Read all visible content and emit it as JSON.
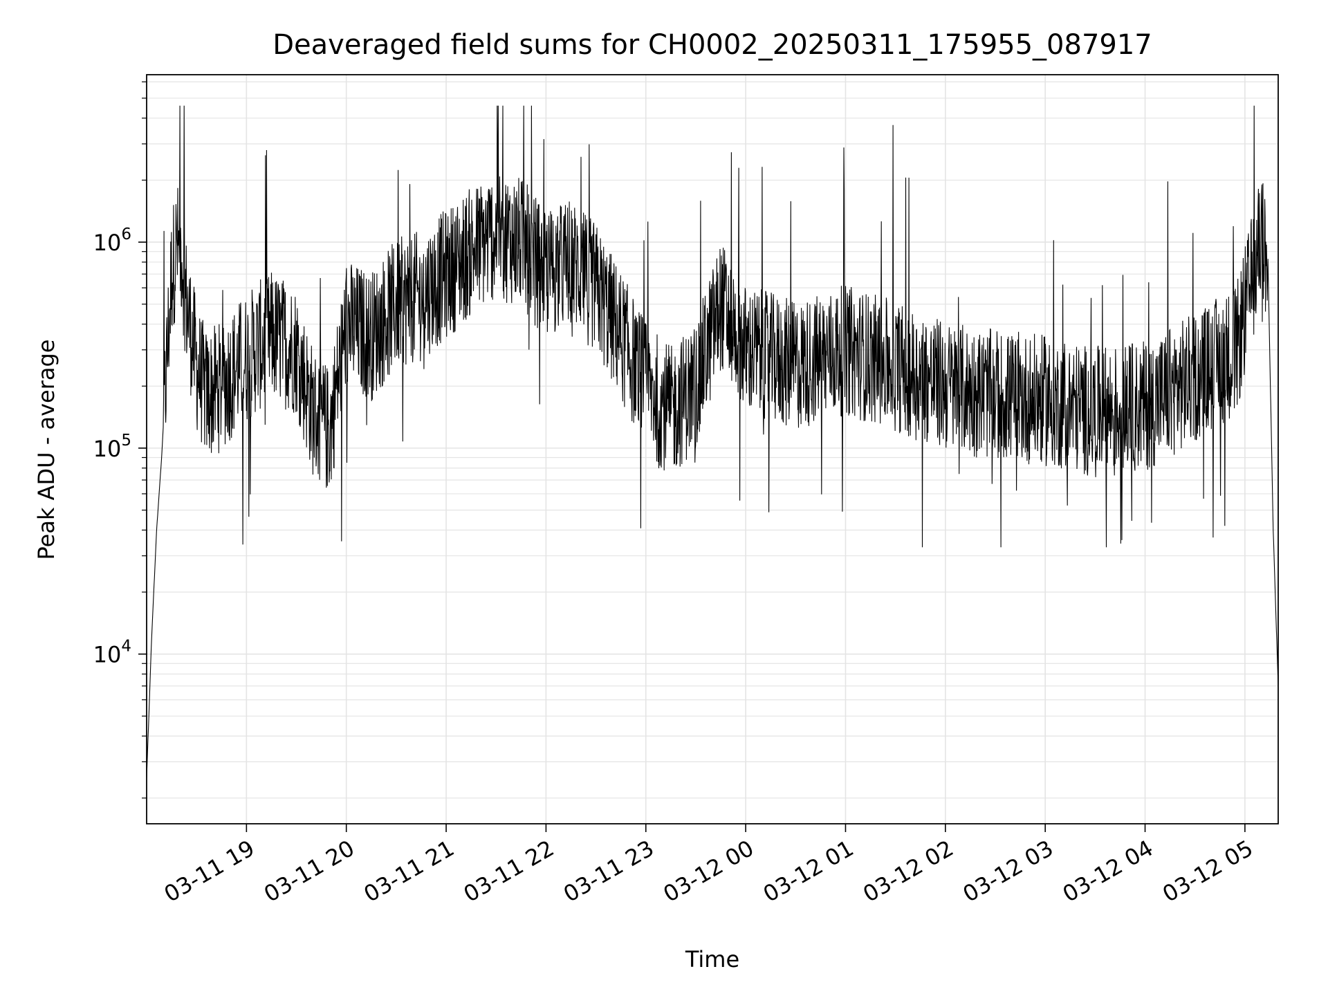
{
  "chart_data": {
    "type": "line",
    "title": "Deaveraged field sums for CH0002_20250311_175955_087917",
    "xlabel": "Time",
    "ylabel": "Peak ADU - average",
    "yscale": "log",
    "grid": true,
    "line_color": "#000000",
    "grid_color": "#e4e4e4",
    "x_range": [
      "2025-03-11 18:00",
      "2025-03-12 05:20"
    ],
    "ylim": [
      1500,
      6500000
    ],
    "x_ticks": [
      {
        "t": "2025-03-11 19:00",
        "label": "03-11 19"
      },
      {
        "t": "2025-03-11 20:00",
        "label": "03-11 20"
      },
      {
        "t": "2025-03-11 21:00",
        "label": "03-11 21"
      },
      {
        "t": "2025-03-11 22:00",
        "label": "03-11 22"
      },
      {
        "t": "2025-03-11 23:00",
        "label": "03-11 23"
      },
      {
        "t": "2025-03-12 00:00",
        "label": "03-12 00"
      },
      {
        "t": "2025-03-12 01:00",
        "label": "03-12 01"
      },
      {
        "t": "2025-03-12 02:00",
        "label": "03-12 02"
      },
      {
        "t": "2025-03-12 03:00",
        "label": "03-12 03"
      },
      {
        "t": "2025-03-12 04:00",
        "label": "03-12 04"
      },
      {
        "t": "2025-03-12 05:00",
        "label": "03-12 05"
      }
    ],
    "y_ticks": [
      {
        "value": 10000,
        "base": "10",
        "exp": "4"
      },
      {
        "value": 100000,
        "base": "10",
        "exp": "5"
      },
      {
        "value": 1000000,
        "base": "10",
        "exp": "6"
      }
    ],
    "series": [
      {
        "x": [
          "2025-03-11 18:00",
          "2025-03-11 18:03",
          "2025-03-11 18:06",
          "2025-03-11 18:09",
          "2025-03-11 18:12",
          "2025-03-11 18:15",
          "2025-03-11 18:18",
          "2025-03-11 18:21",
          "2025-03-11 18:24",
          "2025-03-11 18:30",
          "2025-03-11 18:36",
          "2025-03-11 18:45",
          "2025-03-11 18:55",
          "2025-03-11 19:05",
          "2025-03-11 19:15",
          "2025-03-11 19:30",
          "2025-03-11 19:40",
          "2025-03-11 19:50",
          "2025-03-11 20:00",
          "2025-03-11 20:15",
          "2025-03-11 20:30",
          "2025-03-11 20:45",
          "2025-03-11 21:00",
          "2025-03-11 21:15",
          "2025-03-11 21:30",
          "2025-03-11 21:45",
          "2025-03-11 22:00",
          "2025-03-11 22:15",
          "2025-03-11 22:30",
          "2025-03-11 22:45",
          "2025-03-11 23:00",
          "2025-03-11 23:15",
          "2025-03-11 23:30",
          "2025-03-11 23:45",
          "2025-03-12 00:00",
          "2025-03-12 00:30",
          "2025-03-12 01:00",
          "2025-03-12 01:30",
          "2025-03-12 02:00",
          "2025-03-12 02:30",
          "2025-03-12 03:00",
          "2025-03-12 03:30",
          "2025-03-12 04:00",
          "2025-03-12 04:30",
          "2025-03-12 04:55",
          "2025-03-12 05:05",
          "2025-03-12 05:10",
          "2025-03-12 05:14",
          "2025-03-12 05:17",
          "2025-03-12 05:20"
        ],
        "y": [
          2500,
          12000,
          40000,
          90000,
          250000,
          700000,
          950000,
          900000,
          500000,
          250000,
          180000,
          200000,
          250000,
          300000,
          350000,
          300000,
          150000,
          120000,
          400000,
          350000,
          500000,
          550000,
          700000,
          900000,
          1100000,
          1000000,
          700000,
          800000,
          600000,
          350000,
          200000,
          150000,
          200000,
          500000,
          300000,
          250000,
          300000,
          250000,
          200000,
          180000,
          170000,
          150000,
          160000,
          220000,
          300000,
          700000,
          1100000,
          700000,
          40000,
          7000
        ],
        "noise_dex": 0.32,
        "spike_max": 4600000,
        "dip_min": 33000
      }
    ]
  }
}
